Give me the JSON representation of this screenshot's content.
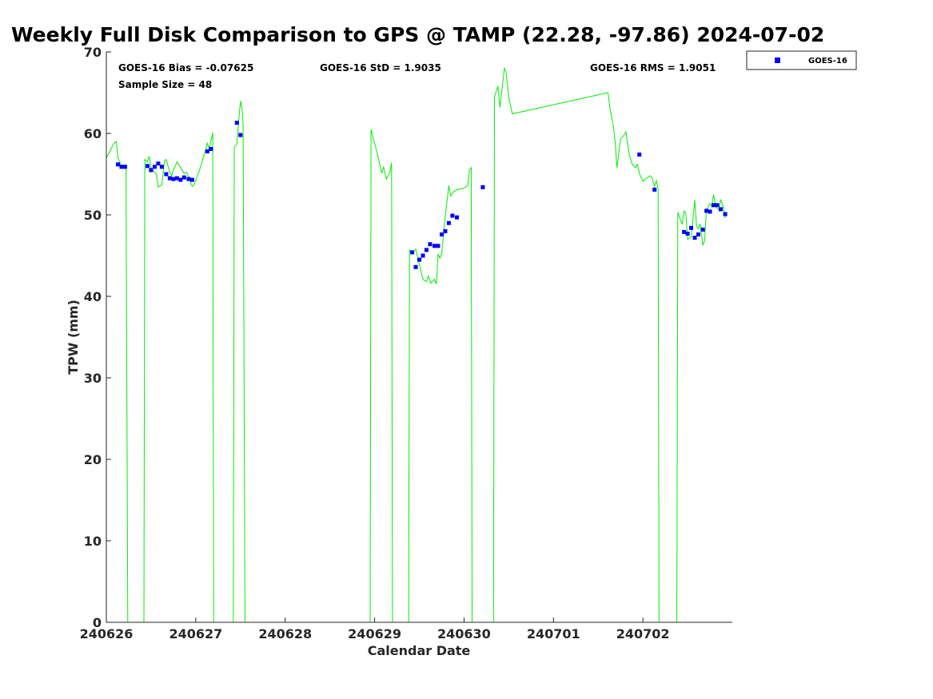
{
  "chart_data": {
    "type": "scatter",
    "title": "Weekly Full Disk Comparison to GPS @ TAMP (22.28, -97.86) 2024-07-02",
    "xlabel": "Calendar Date",
    "ylabel": "TPW (mm)",
    "xlim": [
      0,
      7.0
    ],
    "ylim": [
      0,
      70
    ],
    "x_ticks": [
      {
        "x": 0,
        "label": "240626"
      },
      {
        "x": 1,
        "label": "240627"
      },
      {
        "x": 2,
        "label": "240628"
      },
      {
        "x": 3,
        "label": "240629"
      },
      {
        "x": 4,
        "label": "240630"
      },
      {
        "x": 5,
        "label": "240701"
      },
      {
        "x": 6,
        "label": "240702"
      }
    ],
    "y_ticks": [
      0,
      10,
      20,
      30,
      40,
      50,
      60,
      70
    ],
    "grid": false,
    "legend": {
      "position": "outside-top-right",
      "entries": [
        "GOES-16"
      ]
    },
    "stats": {
      "bias": "GOES-16 Bias = -0.07625",
      "std": "GOES-16 StD = 1.9035",
      "rms": "GOES-16 RMS = 1.9051",
      "sample": "Sample Size = 48"
    },
    "series": [
      {
        "name": "GOES-16",
        "type": "scatter",
        "color": "#0000ff",
        "points": [
          [
            0.13,
            56.2
          ],
          [
            0.17,
            55.9
          ],
          [
            0.21,
            55.9
          ],
          [
            0.46,
            56.0
          ],
          [
            0.5,
            55.5
          ],
          [
            0.54,
            55.9
          ],
          [
            0.58,
            56.3
          ],
          [
            0.62,
            55.9
          ],
          [
            0.67,
            55.0
          ],
          [
            0.71,
            54.5
          ],
          [
            0.75,
            54.4
          ],
          [
            0.79,
            54.5
          ],
          [
            0.83,
            54.3
          ],
          [
            0.87,
            54.6
          ],
          [
            0.92,
            54.4
          ],
          [
            0.96,
            54.3
          ],
          [
            1.13,
            57.8
          ],
          [
            1.17,
            58.1
          ],
          [
            1.46,
            61.3
          ],
          [
            1.5,
            59.8
          ],
          [
            3.42,
            45.4
          ],
          [
            3.46,
            43.6
          ],
          [
            3.5,
            44.5
          ],
          [
            3.54,
            45.0
          ],
          [
            3.58,
            45.7
          ],
          [
            3.62,
            46.4
          ],
          [
            3.67,
            46.2
          ],
          [
            3.71,
            46.2
          ],
          [
            3.75,
            47.6
          ],
          [
            3.79,
            48.0
          ],
          [
            3.83,
            49.0
          ],
          [
            3.87,
            49.9
          ],
          [
            3.92,
            49.7
          ],
          [
            4.21,
            53.4
          ],
          [
            5.96,
            57.4
          ],
          [
            6.13,
            53.1
          ],
          [
            6.46,
            47.9
          ],
          [
            6.5,
            47.7
          ],
          [
            6.54,
            48.4
          ],
          [
            6.58,
            47.2
          ],
          [
            6.62,
            47.6
          ],
          [
            6.67,
            48.2
          ],
          [
            6.71,
            50.5
          ],
          [
            6.75,
            50.4
          ],
          [
            6.79,
            51.2
          ],
          [
            6.83,
            51.2
          ],
          [
            6.87,
            50.7
          ],
          [
            6.92,
            50.1
          ]
        ]
      },
      {
        "name": "",
        "type": "line",
        "color": "#00ee00",
        "points": [
          [
            0.0,
            57.0
          ],
          [
            0.04,
            57.8
          ],
          [
            0.08,
            58.7
          ],
          [
            0.11,
            59.0
          ],
          [
            0.13,
            57.0
          ],
          [
            0.17,
            56.0
          ],
          [
            0.21,
            55.9
          ],
          [
            0.22,
            55.6
          ],
          [
            0.24,
            0.0
          ],
          [
            0.42,
            0.0
          ],
          [
            0.43,
            56.8
          ],
          [
            0.46,
            56.5
          ],
          [
            0.48,
            57.2
          ],
          [
            0.5,
            55.8
          ],
          [
            0.54,
            55.2
          ],
          [
            0.56,
            55.0
          ],
          [
            0.58,
            53.4
          ],
          [
            0.62,
            53.7
          ],
          [
            0.65,
            56.6
          ],
          [
            0.67,
            56.8
          ],
          [
            0.71,
            55.2
          ],
          [
            0.73,
            54.8
          ],
          [
            0.75,
            55.5
          ],
          [
            0.79,
            56.5
          ],
          [
            0.83,
            55.8
          ],
          [
            0.87,
            55.1
          ],
          [
            0.9,
            55.2
          ],
          [
            0.92,
            54.6
          ],
          [
            0.96,
            53.5
          ],
          [
            0.98,
            53.7
          ],
          [
            1.04,
            55.4
          ],
          [
            1.08,
            56.9
          ],
          [
            1.13,
            58.8
          ],
          [
            1.15,
            58.1
          ],
          [
            1.19,
            60.1
          ],
          [
            1.2,
            0.0
          ],
          [
            1.42,
            0.0
          ],
          [
            1.43,
            58.3
          ],
          [
            1.46,
            58.7
          ],
          [
            1.48,
            61.5
          ],
          [
            1.5,
            64.0
          ],
          [
            1.52,
            62.8
          ],
          [
            1.53,
            61.0
          ],
          [
            1.55,
            0.0
          ],
          [
            2.95,
            0.0
          ],
          [
            2.96,
            60.5
          ],
          [
            3.0,
            58.8
          ],
          [
            3.04,
            57.1
          ],
          [
            3.08,
            55.1
          ],
          [
            3.1,
            55.9
          ],
          [
            3.13,
            54.4
          ],
          [
            3.17,
            55.2
          ],
          [
            3.19,
            56.4
          ],
          [
            3.2,
            0.0
          ],
          [
            3.38,
            0.0
          ],
          [
            3.39,
            45.7
          ],
          [
            3.42,
            45.3
          ],
          [
            3.46,
            45.8
          ],
          [
            3.5,
            43.9
          ],
          [
            3.54,
            42.1
          ],
          [
            3.58,
            41.8
          ],
          [
            3.6,
            42.5
          ],
          [
            3.63,
            41.6
          ],
          [
            3.67,
            42.1
          ],
          [
            3.69,
            41.5
          ],
          [
            3.71,
            45.2
          ],
          [
            3.73,
            44.7
          ],
          [
            3.75,
            45.3
          ],
          [
            3.79,
            49.8
          ],
          [
            3.83,
            53.6
          ],
          [
            3.85,
            52.3
          ],
          [
            3.88,
            52.8
          ],
          [
            3.92,
            53.1
          ],
          [
            4.0,
            53.3
          ],
          [
            4.04,
            53.6
          ],
          [
            4.06,
            55.4
          ],
          [
            4.08,
            55.8
          ],
          [
            4.09,
            0.0
          ],
          [
            4.33,
            0.0
          ],
          [
            4.34,
            64.5
          ],
          [
            4.38,
            65.8
          ],
          [
            4.4,
            63.2
          ],
          [
            4.42,
            64.9
          ],
          [
            4.45,
            68.0
          ],
          [
            4.47,
            67.5
          ],
          [
            4.5,
            64.4
          ],
          [
            4.54,
            62.4
          ],
          [
            5.61,
            65.0
          ],
          [
            5.63,
            63.2
          ],
          [
            5.67,
            60.9
          ],
          [
            5.69,
            58.9
          ],
          [
            5.71,
            55.8
          ],
          [
            5.75,
            59.3
          ],
          [
            5.79,
            59.8
          ],
          [
            5.81,
            60.2
          ],
          [
            5.83,
            58.7
          ],
          [
            5.85,
            57.3
          ],
          [
            5.88,
            56.2
          ],
          [
            5.92,
            55.8
          ],
          [
            5.94,
            56.2
          ],
          [
            5.96,
            55.1
          ],
          [
            6.0,
            54.1
          ],
          [
            6.04,
            54.5
          ],
          [
            6.08,
            54.8
          ],
          [
            6.1,
            54.6
          ],
          [
            6.13,
            53.5
          ],
          [
            6.15,
            54.2
          ],
          [
            6.17,
            53.2
          ],
          [
            6.18,
            0.0
          ],
          [
            6.38,
            0.0
          ],
          [
            6.39,
            50.3
          ],
          [
            6.42,
            49.4
          ],
          [
            6.44,
            48.9
          ],
          [
            6.46,
            50.5
          ],
          [
            6.48,
            50.2
          ],
          [
            6.5,
            47.0
          ],
          [
            6.54,
            47.3
          ],
          [
            6.56,
            49.6
          ],
          [
            6.58,
            51.8
          ],
          [
            6.6,
            48.6
          ],
          [
            6.62,
            48.3
          ],
          [
            6.64,
            48.9
          ],
          [
            6.67,
            46.3
          ],
          [
            6.69,
            46.8
          ],
          [
            6.71,
            50.6
          ],
          [
            6.75,
            51.4
          ],
          [
            6.77,
            51.0
          ],
          [
            6.79,
            52.5
          ],
          [
            6.81,
            51.3
          ],
          [
            6.83,
            50.8
          ],
          [
            6.85,
            50.6
          ],
          [
            6.87,
            51.9
          ],
          [
            6.9,
            50.9
          ],
          [
            6.92,
            49.6
          ]
        ]
      }
    ]
  }
}
